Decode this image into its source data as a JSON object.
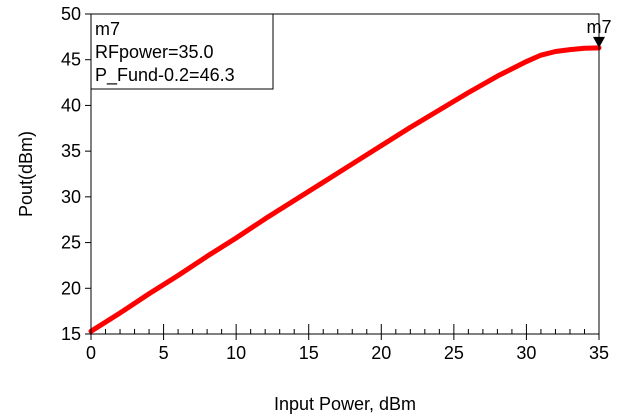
{
  "chart_data": {
    "type": "line",
    "xlabel": "Input Power, dBm",
    "ylabel": "Pout(dBm)",
    "xlim": [
      0,
      35
    ],
    "ylim": [
      15,
      50
    ],
    "x_ticks": [
      0,
      5,
      10,
      15,
      20,
      25,
      30,
      35
    ],
    "y_ticks": [
      15,
      20,
      25,
      30,
      35,
      40,
      45,
      50
    ],
    "x_tick_labels": [
      "0",
      "5",
      "10",
      "15",
      "20",
      "25",
      "30",
      "35"
    ],
    "y_tick_labels": [
      "15",
      "20",
      "25",
      "30",
      "35",
      "40",
      "45",
      "50"
    ],
    "grid": false,
    "minor_ticks": true,
    "series": [
      {
        "color": "#ff0000",
        "x": [
          0,
          2,
          4,
          6,
          8,
          10,
          12,
          14,
          16,
          18,
          20,
          22,
          24,
          26,
          28,
          30,
          31,
          32,
          33,
          34,
          35
        ],
        "y": [
          15.3,
          17.3,
          19.4,
          21.4,
          23.5,
          25.5,
          27.6,
          29.6,
          31.6,
          33.6,
          35.6,
          37.6,
          39.5,
          41.4,
          43.2,
          44.8,
          45.5,
          45.9,
          46.1,
          46.25,
          46.3
        ]
      }
    ],
    "marker": {
      "name": "m7",
      "x": 35.0,
      "y": 46.3,
      "lines": [
        "m7",
        "RFpower=35.0",
        "P_Fund-0.2=46.3"
      ]
    }
  }
}
